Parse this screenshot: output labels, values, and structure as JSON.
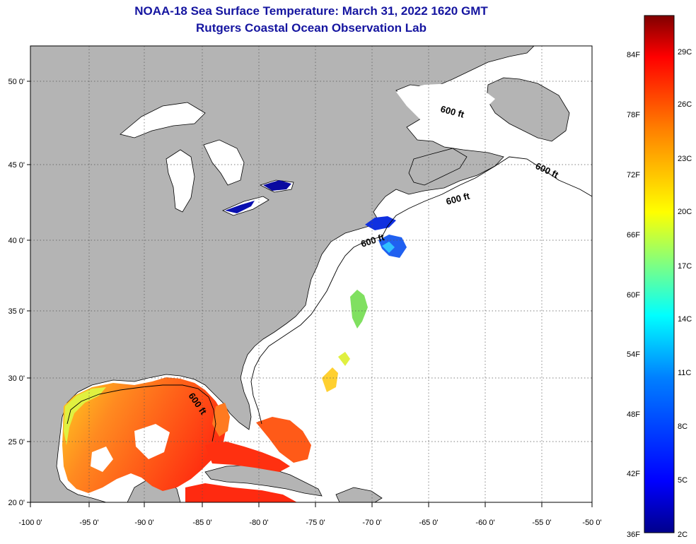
{
  "title": {
    "line1": "NOAA-18 Sea Surface Temperature:  March 31, 2022 1620 GMT",
    "line2": "Rutgers Coastal Ocean Observation Lab"
  },
  "map": {
    "lon_labels": [
      "-100 0'",
      "-95 0'",
      "-90 0'",
      "-85 0'",
      "-80 0'",
      "-75 0'",
      "-70 0'",
      "-65 0'",
      "-60 0'",
      "-55 0'",
      "-50 0'"
    ],
    "lat_labels": [
      "50 0'",
      "45 0'",
      "40 0'",
      "35 0'",
      "30 0'",
      "25 0'",
      "20 0'"
    ],
    "contour_labels": [
      "600 ft",
      "600 ft",
      "600 ft",
      "600 ft",
      "600 ft"
    ],
    "colors": {
      "land": "#b4b4b4",
      "water_nodata": "#ffffff",
      "coast": "#000000",
      "grid": "#555555"
    }
  },
  "colorbar": {
    "fahrenheit_labels": [
      "84F",
      "78F",
      "72F",
      "66F",
      "60F",
      "54F",
      "48F",
      "42F",
      "36F"
    ],
    "celsius_labels": [
      "29C",
      "26C",
      "23C",
      "20C",
      "17C",
      "14C",
      "11C",
      "8C",
      "5C",
      "2C"
    ],
    "gradient": [
      "#00008c",
      "#0000ff",
      "#0080ff",
      "#00ffff",
      "#80ff80",
      "#ffff00",
      "#ff8000",
      "#ff0000",
      "#800000"
    ]
  }
}
